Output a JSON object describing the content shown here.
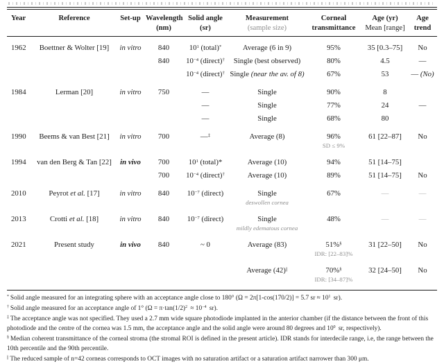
{
  "table": {
    "columns": [
      {
        "l1": "Year",
        "l2": "",
        "l2_style": "reg",
        "align": "left"
      },
      {
        "l1": "Reference",
        "l2": "",
        "l2_style": "reg",
        "align": "center"
      },
      {
        "l1": "Set-up",
        "l2": "",
        "l2_style": "reg",
        "align": "center"
      },
      {
        "l1": "Wavelength",
        "l2": "(nm)",
        "l2_style": "bold",
        "align": "center"
      },
      {
        "l1": "Solid angle",
        "l2": "(sr)",
        "l2_style": "bold",
        "align": "center"
      },
      {
        "l1": "Measurement",
        "l2": "(sample size)",
        "l2_style": "gray",
        "align": "center"
      },
      {
        "l1": "Corneal",
        "l2": "transmittance",
        "l2_style": "bold",
        "align": "center"
      },
      {
        "l1": "Age (yr)",
        "l2": "Mean [range]",
        "l2_style": "reg",
        "align": "center"
      },
      {
        "l1": "Age",
        "l2": "trend",
        "l2_style": "bold",
        "align": "center"
      }
    ],
    "rows": [
      {
        "g": true,
        "year": "1962",
        "ref": [
          {
            "t": "Boettner & Wolter [19]"
          }
        ],
        "setup": [
          {
            "t": "in vitro",
            "i": true
          }
        ],
        "wl": "840",
        "solid": [
          {
            "t": "10"
          },
          {
            "t": "1",
            "sup": true
          },
          {
            "t": " (total)"
          },
          {
            "t": "*",
            "sup": true
          }
        ],
        "meas": [
          {
            "t": "Average (6 in 9)"
          }
        ],
        "trans": [
          {
            "t": "95%"
          }
        ],
        "age": [
          {
            "t": "35 [0.3–75]"
          }
        ],
        "trend": [
          {
            "t": "No"
          }
        ]
      },
      {
        "year": "",
        "wl": "840",
        "solid": [
          {
            "t": "10"
          },
          {
            "t": "−4",
            "sup": true
          },
          {
            "t": " (direct)"
          },
          {
            "t": "†",
            "sup": true
          }
        ],
        "meas": [
          {
            "t": "Single (best observed)"
          }
        ],
        "trans": [
          {
            "t": "80%"
          }
        ],
        "age": [
          {
            "t": "4.5"
          }
        ],
        "trend": [
          {
            "t": "—"
          }
        ]
      },
      {
        "solid": [
          {
            "t": "10"
          },
          {
            "t": "−4",
            "sup": true
          },
          {
            "t": " (direct)"
          },
          {
            "t": "†",
            "sup": true
          }
        ],
        "meas": [
          {
            "t": "Single "
          },
          {
            "t": "(near the av. of 8)",
            "i": true
          }
        ],
        "trans": [
          {
            "t": "67%"
          }
        ],
        "age": [
          {
            "t": "53"
          }
        ],
        "trend": [
          {
            "t": "— "
          },
          {
            "t": "(No)",
            "i": true
          }
        ]
      },
      {
        "g": true,
        "year": "1984",
        "ref": [
          {
            "t": "Lerman [20]"
          }
        ],
        "setup": [
          {
            "t": "in vitro",
            "i": true
          }
        ],
        "wl": "750",
        "solid": [
          {
            "t": "—"
          }
        ],
        "meas": [
          {
            "t": "Single"
          }
        ],
        "trans": [
          {
            "t": "90%"
          }
        ],
        "age": [
          {
            "t": "8"
          }
        ],
        "trend": []
      },
      {
        "solid": [
          {
            "t": "—"
          }
        ],
        "meas": [
          {
            "t": "Single"
          }
        ],
        "trans": [
          {
            "t": "77%"
          }
        ],
        "age": [
          {
            "t": "24"
          }
        ],
        "trend": [
          {
            "t": "—"
          }
        ]
      },
      {
        "solid": [
          {
            "t": "—"
          }
        ],
        "meas": [
          {
            "t": "Single"
          }
        ],
        "trans": [
          {
            "t": "68%"
          }
        ],
        "age": [
          {
            "t": "80"
          }
        ],
        "trend": []
      },
      {
        "g": true,
        "year": "1990",
        "ref": [
          {
            "t": "Beems & van Best [21]"
          }
        ],
        "setup": [
          {
            "t": "in vitro",
            "i": true
          }
        ],
        "wl": "700",
        "solid": [
          {
            "t": "—"
          },
          {
            "t": "‡",
            "sup": true
          }
        ],
        "meas": [
          {
            "t": "Average (8)"
          }
        ],
        "trans": [
          {
            "t": "96%"
          }
        ],
        "trans_sub": "SD ≤ 9%",
        "age": [
          {
            "t": "61 [22–87]"
          }
        ],
        "trend": [
          {
            "t": "No"
          }
        ]
      },
      {
        "g": true,
        "year": "1994",
        "ref": [
          {
            "t": "van den Berg & Tan [22]"
          }
        ],
        "setup": [
          {
            "t": "in vivo",
            "i": true,
            "b": true
          }
        ],
        "wl": "700",
        "solid": [
          {
            "t": "10"
          },
          {
            "t": "1",
            "sup": true
          },
          {
            "t": " (total)*"
          }
        ],
        "meas": [
          {
            "t": "Average (10)"
          }
        ],
        "trans": [
          {
            "t": "94%"
          }
        ],
        "age": [
          {
            "t": "51 [14–75]"
          }
        ],
        "trend": []
      },
      {
        "wl": "700",
        "solid": [
          {
            "t": "10"
          },
          {
            "t": "−4",
            "sup": true
          },
          {
            "t": " (direct)"
          },
          {
            "t": "†",
            "sup": true
          }
        ],
        "meas": [
          {
            "t": "Average (10)"
          }
        ],
        "trans": [
          {
            "t": "89%"
          }
        ],
        "age": [
          {
            "t": "51 [14–75]"
          }
        ],
        "trend": [
          {
            "t": "No"
          }
        ]
      },
      {
        "g": true,
        "year": "2010",
        "ref": [
          {
            "t": "Peyrot "
          },
          {
            "t": "et al.",
            "i": true
          },
          {
            "t": " [17]"
          }
        ],
        "setup": [
          {
            "t": "in vitro",
            "i": true
          }
        ],
        "wl": "840",
        "solid": [
          {
            "t": "10"
          },
          {
            "t": "−7",
            "sup": true
          },
          {
            "t": " (direct)"
          }
        ],
        "meas": [
          {
            "t": "Single"
          }
        ],
        "meas_sub": "deswollen cornea",
        "trans": [
          {
            "t": "67%"
          }
        ],
        "age": [
          {
            "t": "—",
            "gray": true
          }
        ],
        "trend": [
          {
            "t": "—",
            "gray": true
          }
        ]
      },
      {
        "g": true,
        "year": "2013",
        "ref": [
          {
            "t": "Crotti "
          },
          {
            "t": "et al.",
            "i": true
          },
          {
            "t": " [18]"
          }
        ],
        "setup": [
          {
            "t": "in vitro",
            "i": true
          }
        ],
        "wl": "840",
        "solid": [
          {
            "t": "10"
          },
          {
            "t": "−7",
            "sup": true
          },
          {
            "t": " (direct)"
          }
        ],
        "meas": [
          {
            "t": "Single"
          }
        ],
        "meas_sub": "mildly edematous cornea",
        "trans": [
          {
            "t": "48%"
          }
        ],
        "age": [
          {
            "t": "—",
            "gray": true
          }
        ],
        "trend": [
          {
            "t": "—",
            "gray": true
          }
        ]
      },
      {
        "g": true,
        "year": "2021",
        "ref": [
          {
            "t": "Present study"
          }
        ],
        "setup": [
          {
            "t": "in vivo",
            "i": true,
            "b": true
          }
        ],
        "wl": "840",
        "solid": [
          {
            "t": "~ 0"
          }
        ],
        "meas": [
          {
            "t": "Average (83)"
          }
        ],
        "trans": [
          {
            "t": "51%"
          },
          {
            "t": "§",
            "sup": true
          }
        ],
        "trans_sub": "IDR: [22–83]%",
        "age": [
          {
            "t": "31 [22–50]"
          }
        ],
        "trend": [
          {
            "t": "No"
          }
        ]
      },
      {
        "g": true,
        "meas": [
          {
            "t": "Average (42)"
          },
          {
            "t": "||",
            "sup": true
          }
        ],
        "trans": [
          {
            "t": "70%"
          },
          {
            "t": "§",
            "sup": true
          }
        ],
        "trans_sub": "IDR: [34–87]%",
        "age": [
          {
            "t": "32 [24–50]"
          }
        ],
        "trend": [
          {
            "t": "No"
          }
        ]
      }
    ]
  },
  "footnotes": [
    {
      "mark": "*",
      "segs": [
        {
          "t": "Solid angle measured for an integrating sphere with an acceptance angle close to 180° (Ω = 2π[1-cos(170/2)] = 5.7 sr ≈ 10"
        },
        {
          "t": "1",
          "sup": true
        },
        {
          "t": " sr)."
        }
      ]
    },
    {
      "mark": "†",
      "segs": [
        {
          "t": "Solid angle measured for an acceptance angle of 1° (Ω = π·tan(1/2)"
        },
        {
          "t": "2",
          "sup": true
        },
        {
          "t": " ≈ 10"
        },
        {
          "t": "−4",
          "sup": true
        },
        {
          "t": " sr)."
        }
      ]
    },
    {
      "mark": "‡",
      "segs": [
        {
          "t": "The acceptance angle was not specified. They used a 2.7 mm wide square photodiode implanted in the anterior chamber (if the distance between the front of this photodiode and the centre of the cornea was 1.5 mm, the acceptance angle and the solid angle were around 80 degrees and 10"
        },
        {
          "t": "0",
          "sup": true
        },
        {
          "t": " sr, respectively)."
        }
      ]
    },
    {
      "mark": "§",
      "segs": [
        {
          "t": "Median coherent transmittance of the corneal stroma (the stromal ROI is defined in the present article). IDR stands for interdecile range, i.e, the range between the 10th percentile and the 90th percentile."
        }
      ]
    },
    {
      "mark": "||",
      "segs": [
        {
          "t": "The reduced sample of n=42 corneas corresponds to OCT images with no saturation artifact or a saturation artifact narrower than 300 μm."
        }
      ]
    }
  ]
}
